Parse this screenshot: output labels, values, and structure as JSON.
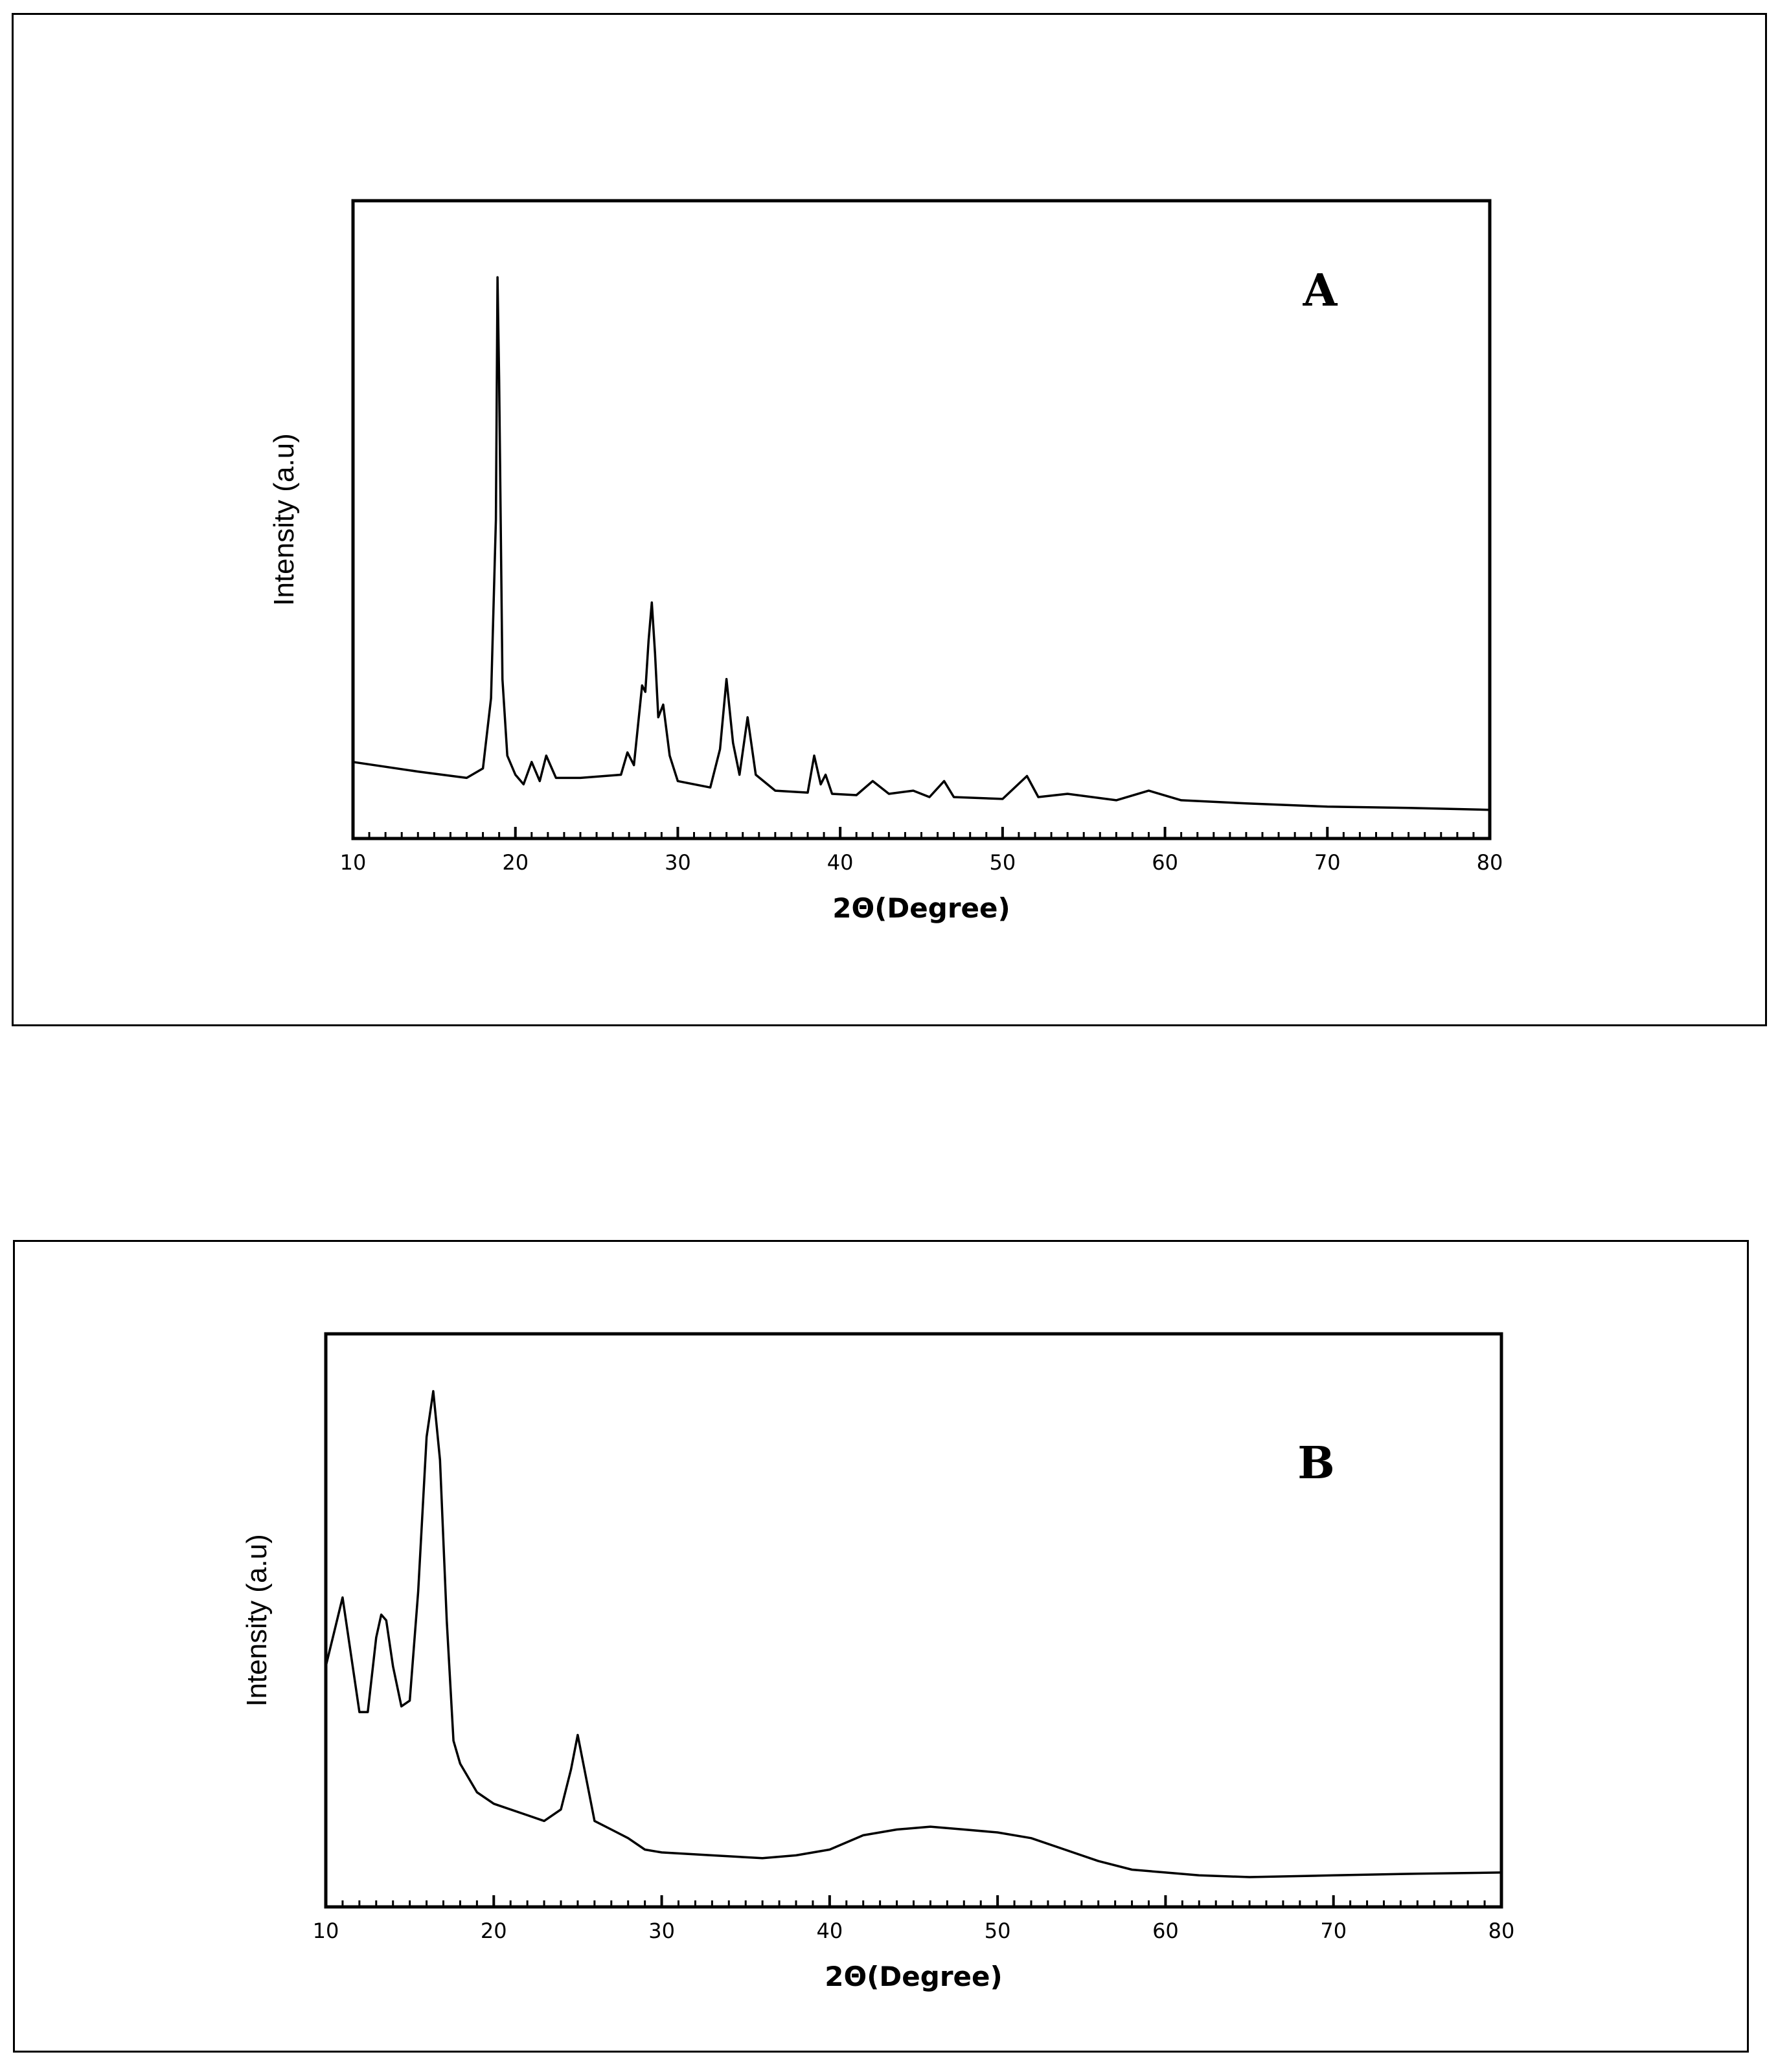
{
  "chart_data": [
    {
      "type": "line",
      "panel_label": "A",
      "xlabel": "2Θ(Degree)",
      "ylabel": "Intensity (a.u)",
      "xlim": [
        10,
        80
      ],
      "xticks": [
        10,
        20,
        30,
        40,
        50,
        60,
        70,
        80
      ],
      "ylim": [
        0,
        1
      ],
      "grid": false,
      "series": [
        {
          "x": [
            10,
            14,
            17,
            18,
            18.5,
            18.8,
            18.9,
            19.0,
            19.2,
            19.5,
            20,
            20.5,
            21,
            21.5,
            21.9,
            22.5,
            24,
            26.5,
            26.9,
            27.3,
            27.8,
            28.0,
            28.2,
            28.4,
            28.6,
            28.8,
            29.1,
            29.5,
            30,
            32,
            32.6,
            33.0,
            33.4,
            33.8,
            34.3,
            34.8,
            36,
            38,
            38.4,
            38.8,
            39.1,
            39.5,
            41,
            42,
            43,
            44.5,
            45.5,
            46.4,
            47,
            50,
            51.5,
            52.2,
            54,
            57,
            59,
            61,
            65,
            70,
            75,
            80
          ],
          "y": [
            0.12,
            0.105,
            0.095,
            0.11,
            0.22,
            0.5,
            0.88,
            0.72,
            0.25,
            0.13,
            0.1,
            0.085,
            0.12,
            0.09,
            0.13,
            0.095,
            0.095,
            0.1,
            0.135,
            0.115,
            0.24,
            0.23,
            0.31,
            0.37,
            0.29,
            0.19,
            0.21,
            0.13,
            0.09,
            0.08,
            0.14,
            0.25,
            0.15,
            0.1,
            0.19,
            0.1,
            0.075,
            0.072,
            0.13,
            0.085,
            0.1,
            0.07,
            0.068,
            0.09,
            0.07,
            0.075,
            0.065,
            0.09,
            0.065,
            0.062,
            0.098,
            0.065,
            0.07,
            0.06,
            0.075,
            0.06,
            0.055,
            0.05,
            0.048,
            0.045
          ]
        }
      ]
    },
    {
      "type": "line",
      "panel_label": "B",
      "xlabel": "2Θ(Degree)",
      "ylabel": "Intensity (a.u)",
      "xlim": [
        10,
        80
      ],
      "xticks": [
        10,
        20,
        30,
        40,
        50,
        60,
        70,
        80
      ],
      "ylim": [
        0,
        1
      ],
      "grid": false,
      "series": [
        {
          "x": [
            10,
            10.5,
            11,
            11.5,
            12,
            12.5,
            13,
            13.3,
            13.6,
            14,
            14.5,
            15,
            15.5,
            16,
            16.4,
            16.8,
            17.2,
            17.6,
            18,
            19,
            20,
            22,
            23,
            24,
            24.6,
            25.0,
            25.4,
            26,
            27,
            28,
            29,
            30,
            33,
            36,
            38,
            40,
            42,
            44,
            46,
            48,
            50,
            52,
            54,
            56,
            58,
            60,
            62,
            65,
            70,
            75,
            80
          ],
          "y": [
            0.42,
            0.48,
            0.54,
            0.44,
            0.34,
            0.34,
            0.47,
            0.51,
            0.5,
            0.42,
            0.35,
            0.36,
            0.55,
            0.82,
            0.9,
            0.78,
            0.5,
            0.29,
            0.25,
            0.2,
            0.18,
            0.16,
            0.15,
            0.17,
            0.24,
            0.3,
            0.24,
            0.15,
            0.135,
            0.12,
            0.1,
            0.095,
            0.09,
            0.085,
            0.09,
            0.1,
            0.125,
            0.135,
            0.14,
            0.135,
            0.13,
            0.12,
            0.1,
            0.08,
            0.065,
            0.06,
            0.055,
            0.052,
            0.055,
            0.058,
            0.06
          ]
        }
      ]
    }
  ]
}
